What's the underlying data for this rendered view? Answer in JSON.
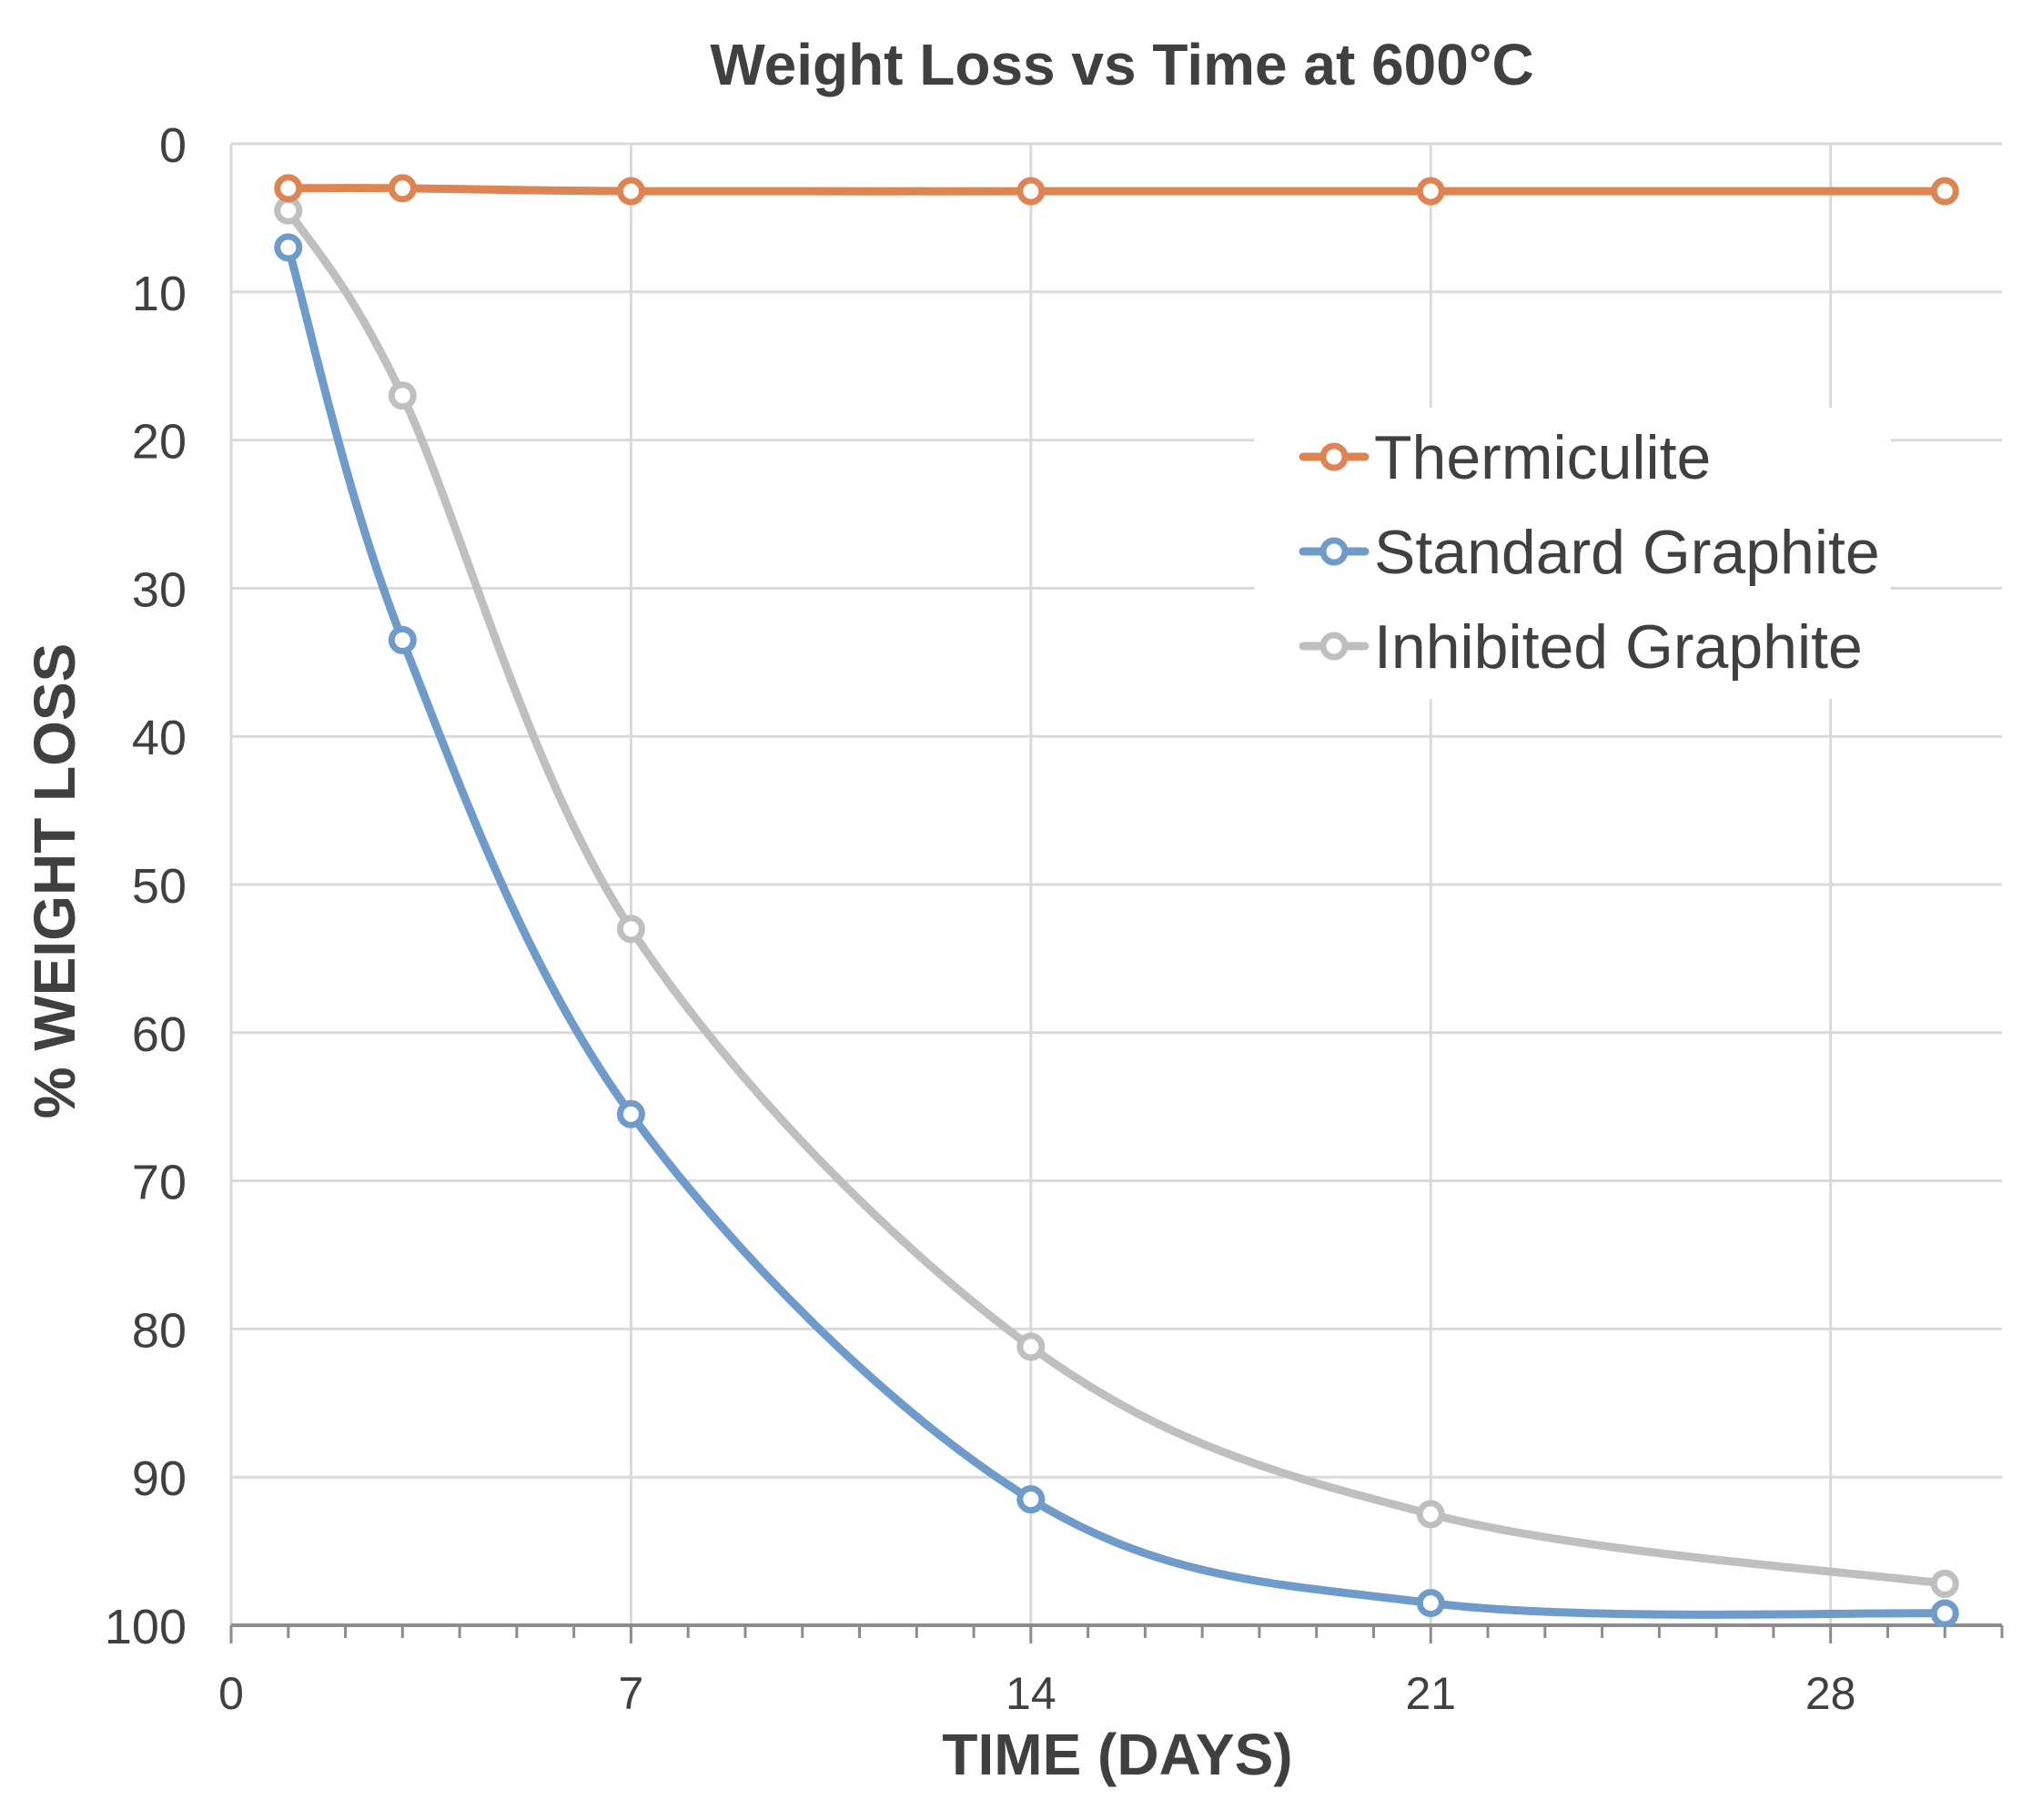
{
  "chart_data": {
    "type": "line",
    "title": "Weight Loss vs Time at 600°C",
    "xlabel": "TIME (DAYS)",
    "ylabel": "% WEIGHT LOSS",
    "xlim": [
      0,
      31
    ],
    "ylim": [
      0,
      100
    ],
    "y_inverted": true,
    "x_ticks": [
      0,
      7,
      14,
      21,
      28
    ],
    "y_ticks": [
      0,
      10,
      20,
      30,
      40,
      50,
      60,
      70,
      80,
      90,
      100
    ],
    "x_minor_ticks": true,
    "grid": true,
    "legend_position": "top-right",
    "series": [
      {
        "name": "Thermiculite",
        "color": "#DD8452",
        "x": [
          1,
          3,
          7,
          14,
          21,
          30
        ],
        "y": [
          3,
          3,
          3.2,
          3.2,
          3.2,
          3.2
        ]
      },
      {
        "name": "Standard Graphite",
        "color": "#6F9BCB",
        "x": [
          1,
          3,
          7,
          14,
          21,
          30
        ],
        "y": [
          7,
          33.5,
          65.5,
          91.5,
          98.5,
          99.2
        ]
      },
      {
        "name": "Inhibited Graphite",
        "color": "#BFBFBF",
        "x": [
          1,
          3,
          7,
          14,
          21,
          30
        ],
        "y": [
          4.5,
          17,
          53,
          81.2,
          92.5,
          97.2
        ]
      }
    ]
  }
}
